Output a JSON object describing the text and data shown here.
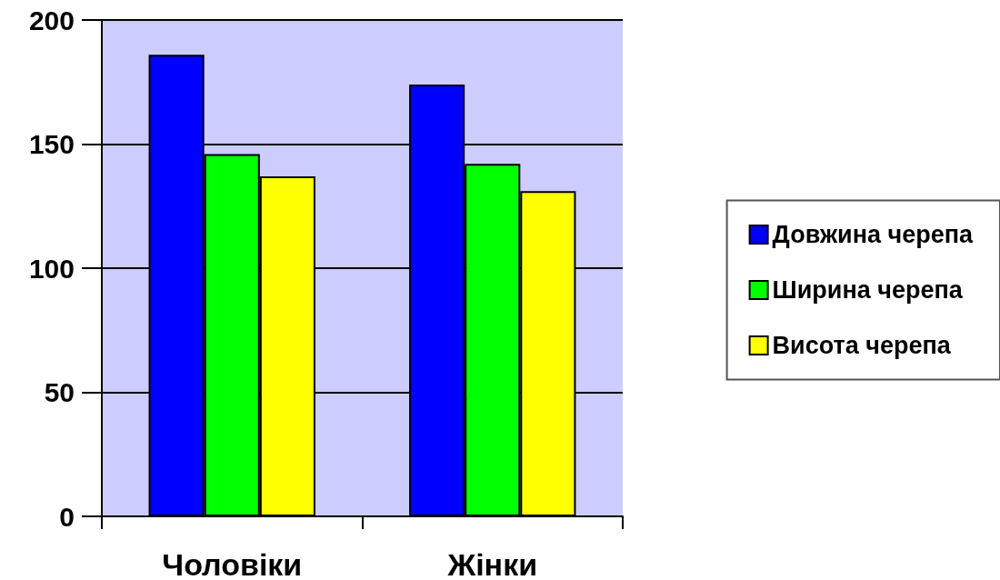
{
  "chart_data": {
    "type": "bar",
    "categories": [
      "Чоловіки",
      "Жінки"
    ],
    "series": [
      {
        "name": "Довжина черепа",
        "color": "#0000ff",
        "values": [
          186,
          174
        ]
      },
      {
        "name": "Ширина черепа",
        "color": "#00ff00",
        "values": [
          146,
          142
        ]
      },
      {
        "name": "Висота черепа",
        "color": "#ffff00",
        "values": [
          137,
          131
        ]
      }
    ],
    "ylim": [
      0,
      200
    ],
    "yticks": [
      0,
      50,
      100,
      150,
      200
    ],
    "grid": "y",
    "legend": "right"
  }
}
